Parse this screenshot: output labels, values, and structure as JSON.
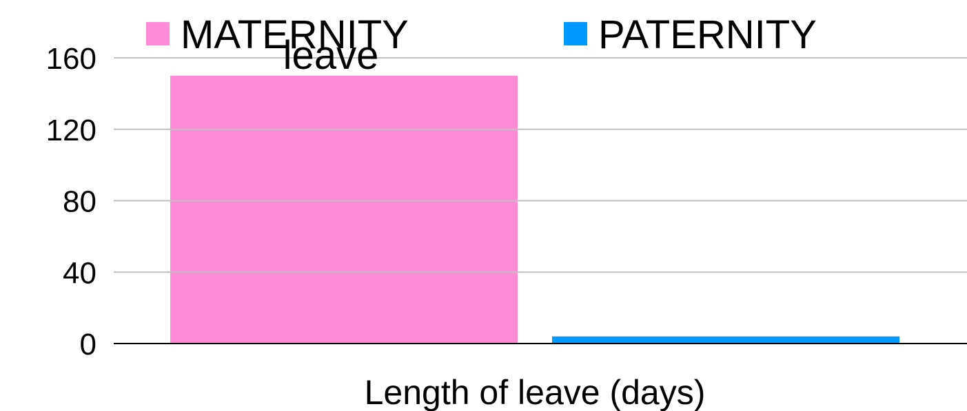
{
  "chart_data": {
    "type": "bar",
    "title": "leave",
    "categories": [
      "Length of leave (days)"
    ],
    "series": [
      {
        "name": "MATERNITY",
        "color": "#ff8bd8",
        "values": [
          150
        ]
      },
      {
        "name": "PATERNITY",
        "color": "#0099ff",
        "values": [
          4
        ]
      }
    ],
    "ylim": [
      0,
      160
    ],
    "yticks": [
      0,
      40,
      80,
      120,
      160
    ],
    "grid": true,
    "legend": "top"
  }
}
